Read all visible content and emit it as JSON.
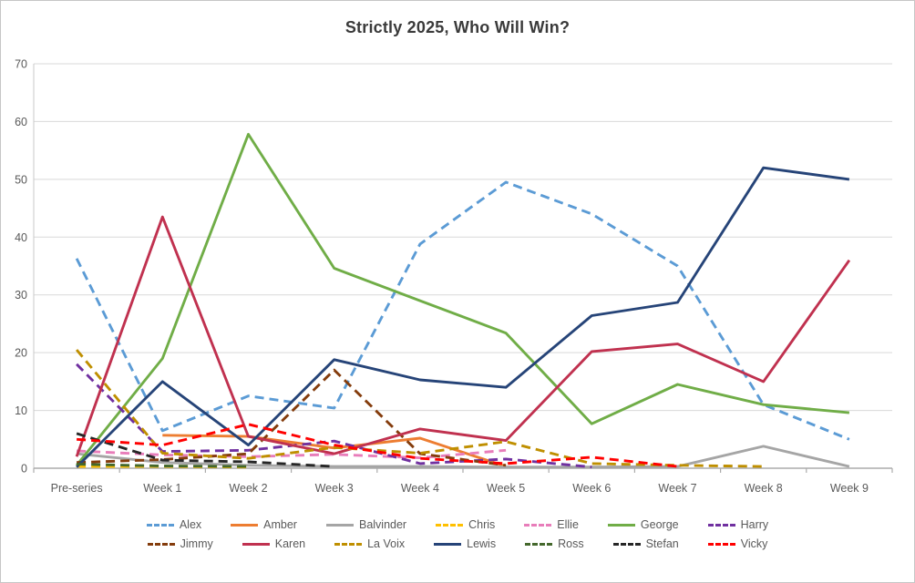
{
  "title": "Strictly 2025, Who Will Win?",
  "chart_data": {
    "type": "line",
    "x": [
      "Pre-series",
      "Week 1",
      "Week 2",
      "Week 3",
      "Week 4",
      "Week 5",
      "Week 6",
      "Week 7",
      "Week 8",
      "Week 9"
    ],
    "xlabel": "",
    "ylabel": "",
    "ylim": [
      0,
      70
    ],
    "yticks": [
      0,
      10,
      20,
      30,
      40,
      50,
      60,
      70
    ],
    "grid": true,
    "legend_position": "bottom",
    "colors": {
      "gridline": "#d9d9d9",
      "axis_line": "#ababab",
      "y_axis_line": "#c9c9c9",
      "tick_text": "#595959",
      "title_text": "#3a3a3a"
    },
    "series": [
      {
        "name": "Alex",
        "color": "#5B9BD5",
        "dash": true,
        "values": [
          36.3,
          6.5,
          12.5,
          10.4,
          38.8,
          49.5,
          44,
          35,
          11,
          5
        ]
      },
      {
        "name": "Amber",
        "color": "#ED7D31",
        "dash": false,
        "values": [
          null,
          5.7,
          5.5,
          3.5,
          5.2,
          0.3,
          null,
          null,
          null,
          null
        ]
      },
      {
        "name": "Balvinder",
        "color": "#A5A5A5",
        "dash": false,
        "values": [
          2.5,
          1,
          0.5,
          0.3,
          0.3,
          0.2,
          0.2,
          0.3,
          3.8,
          0.3
        ]
      },
      {
        "name": "Chris",
        "color": "#FFC000",
        "dash": true,
        "values": [
          0.3,
          0.3,
          0.2,
          null,
          null,
          null,
          null,
          null,
          null,
          null
        ]
      },
      {
        "name": "Ellie",
        "color": "#E87DBA",
        "dash": true,
        "values": [
          3,
          2.3,
          2,
          2.4,
          1.8,
          3.1,
          null,
          null,
          null,
          null
        ]
      },
      {
        "name": "George",
        "color": "#70AD47",
        "dash": false,
        "values": [
          0.5,
          19,
          57.8,
          34.6,
          29,
          23.4,
          7.7,
          14.5,
          11,
          9.6
        ]
      },
      {
        "name": "Harry",
        "color": "#7030A0",
        "dash": true,
        "values": [
          18,
          2.9,
          3.1,
          4.7,
          0.8,
          1.6,
          0.2,
          null,
          null,
          null
        ]
      },
      {
        "name": "Jimmy",
        "color": "#843C0C",
        "dash": true,
        "values": [
          1,
          1.5,
          2.5,
          17,
          2.5,
          0.5,
          null,
          null,
          null,
          null
        ]
      },
      {
        "name": "Karen",
        "color": "#C0314F",
        "dash": false,
        "values": [
          2,
          43.5,
          5.5,
          2.5,
          6.8,
          4.8,
          20.2,
          21.5,
          15,
          36
        ]
      },
      {
        "name": "La Voix",
        "color": "#BF8F00",
        "dash": true,
        "values": [
          20.5,
          2.6,
          1.7,
          3.6,
          2.6,
          4.6,
          0.8,
          0.5,
          0.3,
          null
        ]
      },
      {
        "name": "Lewis",
        "color": "#264478",
        "dash": false,
        "values": [
          0.2,
          15,
          4,
          18.8,
          15.3,
          14,
          26.4,
          28.7,
          52,
          50
        ]
      },
      {
        "name": "Ross",
        "color": "#44682C",
        "dash": true,
        "values": [
          0.7,
          0.4,
          0.3,
          null,
          null,
          null,
          null,
          null,
          null,
          null
        ]
      },
      {
        "name": "Stefan",
        "color": "#262626",
        "dash": true,
        "values": [
          6,
          1.4,
          1.1,
          0.3,
          null,
          null,
          null,
          null,
          null,
          null
        ]
      },
      {
        "name": "Vicky",
        "color": "#FF0000",
        "dash": true,
        "values": [
          5,
          4,
          7.6,
          4,
          1.7,
          0.8,
          1.9,
          0.3,
          null,
          null
        ]
      }
    ],
    "legend_rows": [
      [
        "Alex",
        "Amber",
        "Balvinder",
        "Chris",
        "Ellie",
        "George",
        "Harry"
      ],
      [
        "Jimmy",
        "Karen",
        "La Voix",
        "Lewis",
        "Ross",
        "Stefan",
        "Vicky"
      ]
    ]
  }
}
